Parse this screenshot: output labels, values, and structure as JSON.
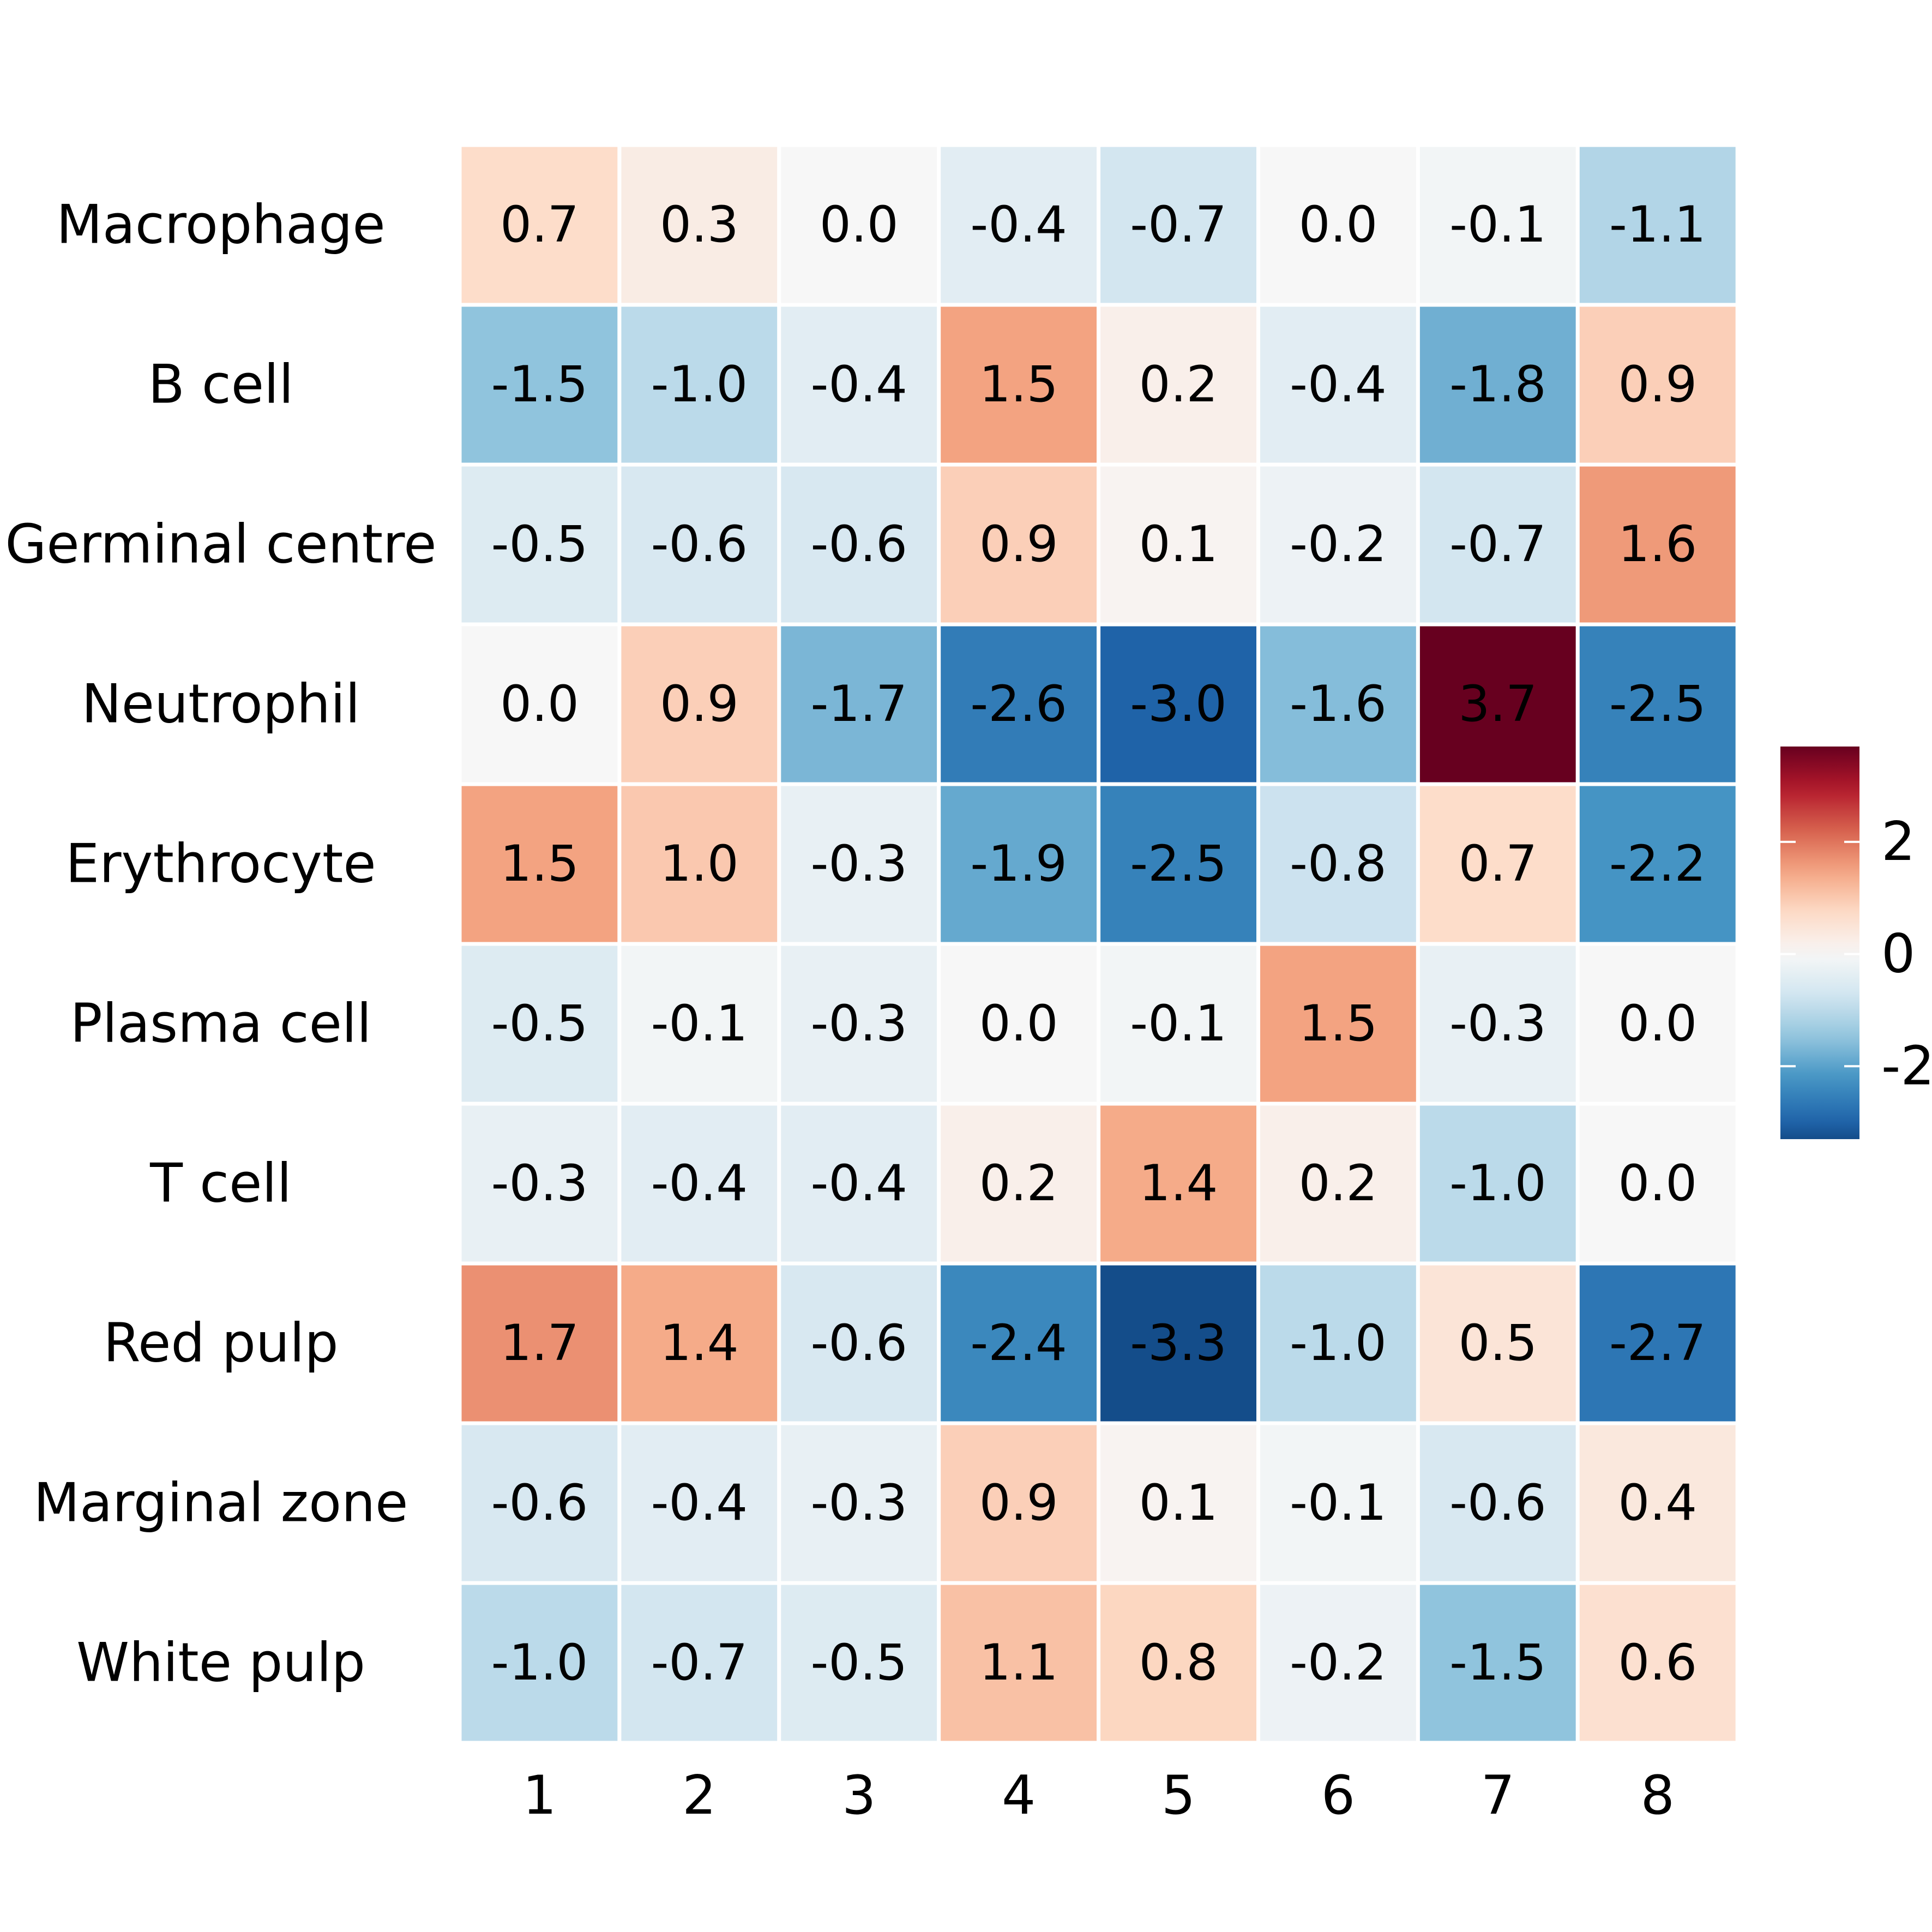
{
  "chart_data": {
    "type": "heatmap",
    "title": "",
    "xlabel": "",
    "ylabel": "",
    "rows": [
      "Macrophage",
      "B cell",
      "Germinal centre",
      "Neutrophil",
      "Erythrocyte",
      "Plasma cell",
      "T cell",
      "Red pulp",
      "Marginal zone",
      "White pulp"
    ],
    "columns": [
      "1",
      "2",
      "3",
      "4",
      "5",
      "6",
      "7",
      "8"
    ],
    "values": [
      [
        0.7,
        0.3,
        0.0,
        -0.4,
        -0.7,
        0.0,
        -0.1,
        -1.1
      ],
      [
        -1.5,
        -1.0,
        -0.4,
        1.5,
        0.2,
        -0.4,
        -1.8,
        0.9
      ],
      [
        -0.5,
        -0.6,
        -0.6,
        0.9,
        0.1,
        -0.2,
        -0.7,
        1.6
      ],
      [
        0.0,
        0.9,
        -1.7,
        -2.6,
        -3.0,
        -1.6,
        3.7,
        -2.5
      ],
      [
        1.5,
        1.0,
        -0.3,
        -1.9,
        -2.5,
        -0.8,
        0.7,
        -2.2
      ],
      [
        -0.5,
        -0.1,
        -0.3,
        0.0,
        -0.1,
        1.5,
        -0.3,
        0.0
      ],
      [
        -0.3,
        -0.4,
        -0.4,
        0.2,
        1.4,
        0.2,
        -1.0,
        0.0
      ],
      [
        1.7,
        1.4,
        -0.6,
        -2.4,
        -3.3,
        -1.0,
        0.5,
        -2.7
      ],
      [
        -0.6,
        -0.4,
        -0.3,
        0.9,
        0.1,
        -0.1,
        -0.6,
        0.4
      ],
      [
        -1.0,
        -0.7,
        -0.5,
        1.1,
        0.8,
        -0.2,
        -1.5,
        0.6
      ]
    ],
    "cell_labels": [
      [
        "0.7",
        "0.3",
        "0.0",
        "-0.4",
        "-0.7",
        "0.0",
        "-0.1",
        "-1.1"
      ],
      [
        "-1.5",
        "-1.0",
        "-0.4",
        "1.5",
        "0.2",
        "-0.4",
        "-1.8",
        "0.9"
      ],
      [
        "-0.5",
        "-0.6",
        "-0.6",
        "0.9",
        "0.1",
        "-0.2",
        "-0.7",
        "1.6"
      ],
      [
        "0.0",
        "0.9",
        "-1.7",
        "-2.6",
        "-3.0",
        "-1.6",
        "3.7",
        "-2.5"
      ],
      [
        "1.5",
        "1.0",
        "-0.3",
        "-1.9",
        "-2.5",
        "-0.8",
        "0.7",
        "-2.2"
      ],
      [
        "-0.5",
        "-0.1",
        "-0.3",
        "0.0",
        "-0.1",
        "1.5",
        "-0.3",
        "0.0"
      ],
      [
        "-0.3",
        "-0.4",
        "-0.4",
        "0.2",
        "1.4",
        "0.2",
        "-1.0",
        "0.0"
      ],
      [
        "1.7",
        "1.4",
        "-0.6",
        "-2.4",
        "-3.3",
        "-1.0",
        "0.5",
        "-2.7"
      ],
      [
        "-0.6",
        "-0.4",
        "-0.3",
        "0.9",
        "0.1",
        "-0.1",
        "-0.6",
        "0.4"
      ],
      [
        "-1.0",
        "-0.7",
        "-0.5",
        "1.1",
        "0.8",
        "-0.2",
        "-1.5",
        "0.6"
      ]
    ],
    "colorscale": {
      "name": "RdBu",
      "low_color": "#2166ac",
      "mid_color": "#f7f7f7",
      "high_color": "#b2182b",
      "vmin": -3.7,
      "vmax": 3.7,
      "stops": [
        {
          "value": -3.7,
          "color": "#053061"
        },
        {
          "value": -2.96,
          "color": "#2166ac"
        },
        {
          "value": -2.22,
          "color": "#4393c3"
        },
        {
          "value": -1.48,
          "color": "#92c5de"
        },
        {
          "value": -0.74,
          "color": "#d1e5f0"
        },
        {
          "value": 0.0,
          "color": "#f7f7f7"
        },
        {
          "value": 0.74,
          "color": "#fddbc7"
        },
        {
          "value": 1.48,
          "color": "#f4a582"
        },
        {
          "value": 2.22,
          "color": "#d6604d"
        },
        {
          "value": 2.96,
          "color": "#b2182b"
        },
        {
          "value": 3.7,
          "color": "#67001f"
        }
      ]
    },
    "legend": {
      "placement": "right",
      "ticks": [
        2,
        0,
        -2
      ],
      "tick_labels": [
        "2",
        "0",
        "-2"
      ],
      "range": [
        -3.3,
        3.7
      ]
    },
    "grid": false
  }
}
